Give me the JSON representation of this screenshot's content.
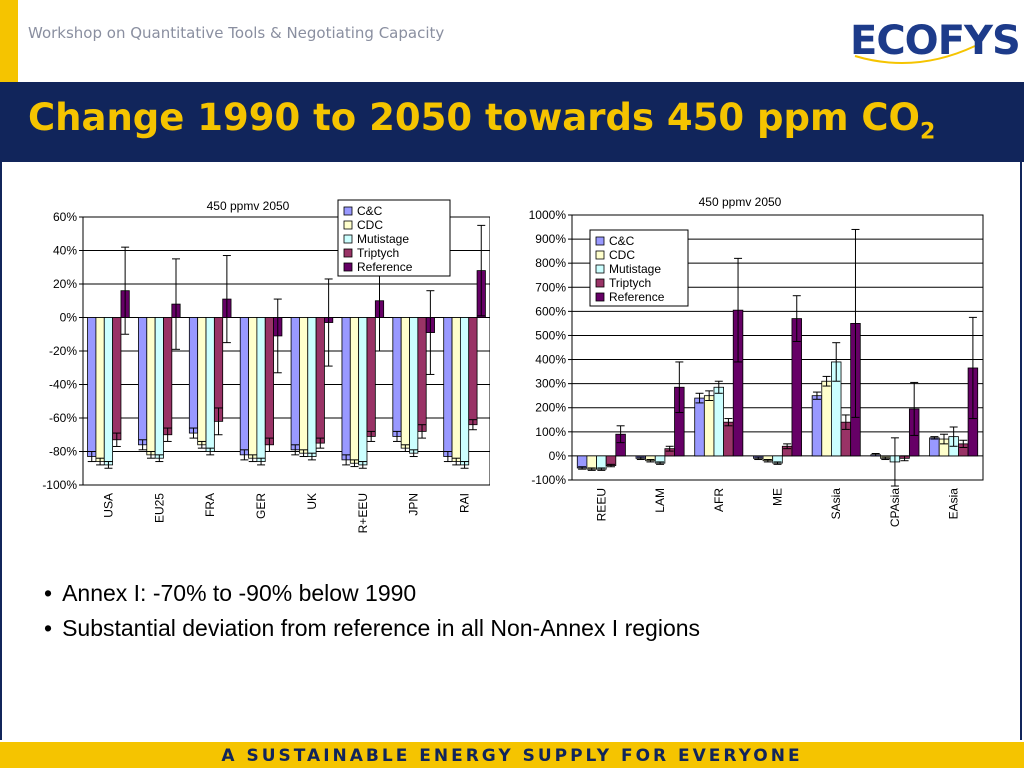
{
  "header": {
    "workshop": "Workshop on Quantitative Tools & Negotiating Capacity",
    "logo_left": "ECO",
    "logo_right": "FYS"
  },
  "slide": {
    "title": "Change 1990 to 2050 towards 450 ppm CO",
    "title_sub": "2",
    "bullets": [
      "Annex I: -70% to -90% below 1990",
      "Substantial deviation from reference in all Non-Annex I regions"
    ]
  },
  "footer": {
    "tagline": "A SUSTAINABLE ENERGY SUPPLY FOR EVERYONE"
  },
  "colors": {
    "navy": "#11255b",
    "yellow": "#f5c400",
    "grey_text": "#8a8fa0"
  },
  "chart_data": [
    {
      "type": "bar",
      "title": "450 ppmv 2050",
      "categories": [
        "USA",
        "EU25",
        "FRA",
        "GER",
        "UK",
        "R+EEU",
        "JPN",
        "RAI"
      ],
      "ylim": [
        -100,
        60
      ],
      "yticks": [
        -100,
        -80,
        -60,
        -40,
        -20,
        0,
        20,
        40,
        60
      ],
      "ytick_labels": [
        "-100%",
        "-80%",
        "-60%",
        "-40%",
        "-20%",
        "0%",
        "20%",
        "40%",
        "60%"
      ],
      "grid": true,
      "legend": "top-right",
      "series": [
        {
          "name": "C&C",
          "color": "#9999ff",
          "values": [
            -83,
            -76,
            -69,
            -82,
            -79,
            -85,
            -71,
            -83
          ],
          "err": [
            3,
            3,
            3,
            3,
            3,
            3,
            3,
            3
          ]
        },
        {
          "name": "CDC",
          "color": "#ffffcc",
          "values": [
            -86,
            -82,
            -76,
            -84,
            -81,
            -87,
            -78,
            -86
          ],
          "err": [
            2,
            2,
            2,
            2,
            2,
            2,
            2,
            2
          ]
        },
        {
          "name": "Mutistage",
          "color": "#ccffff",
          "values": [
            -88,
            -84,
            -80,
            -86,
            -83,
            -88,
            -81,
            -88
          ],
          "err": [
            2,
            2,
            2,
            2,
            2,
            2,
            2,
            2
          ]
        },
        {
          "name": "Triptych",
          "color": "#993366",
          "values": [
            -73,
            -70,
            -62,
            -76,
            -75,
            -71,
            -68,
            -64
          ],
          "err": [
            4,
            4,
            8,
            4,
            3,
            3,
            4,
            3
          ]
        },
        {
          "name": "Reference",
          "color": "#660066",
          "values": [
            16,
            8,
            11,
            -11,
            -3,
            10,
            -9,
            28
          ],
          "err": [
            26,
            27,
            26,
            22,
            26,
            30,
            25,
            27
          ]
        }
      ]
    },
    {
      "type": "bar",
      "title": "450 ppmv 2050",
      "categories": [
        "REEU",
        "LAM",
        "AFR",
        "ME",
        "SAsia",
        "CPAsia",
        "EAsia"
      ],
      "ylim": [
        -100,
        1000
      ],
      "yticks": [
        -100,
        0,
        100,
        200,
        300,
        400,
        500,
        600,
        700,
        800,
        900,
        1000
      ],
      "ytick_labels": [
        "-100%",
        "0%",
        "100%",
        "200%",
        "300%",
        "400%",
        "500%",
        "600%",
        "700%",
        "800%",
        "900%",
        "1000%"
      ],
      "grid": true,
      "legend": "top-left",
      "series": [
        {
          "name": "C&C",
          "color": "#9999ff",
          "values": [
            -50,
            -10,
            240,
            -10,
            250,
            5,
            75
          ],
          "err": [
            5,
            5,
            20,
            5,
            15,
            5,
            5
          ]
        },
        {
          "name": "CDC",
          "color": "#ffffcc",
          "values": [
            -55,
            -20,
            250,
            -20,
            310,
            -10,
            70
          ],
          "err": [
            5,
            5,
            20,
            5,
            20,
            5,
            20
          ]
        },
        {
          "name": "Mutistage",
          "color": "#ccffff",
          "values": [
            -55,
            -30,
            285,
            -30,
            390,
            -25,
            80
          ],
          "err": [
            5,
            5,
            25,
            5,
            80,
            100,
            40
          ]
        },
        {
          "name": "Triptych",
          "color": "#993366",
          "values": [
            -40,
            30,
            140,
            40,
            140,
            -10,
            50
          ],
          "err": [
            5,
            10,
            15,
            10,
            30,
            10,
            15
          ]
        },
        {
          "name": "Reference",
          "color": "#660066",
          "values": [
            90,
            285,
            605,
            570,
            550,
            195,
            365
          ],
          "err": [
            35,
            105,
            215,
            95,
            390,
            110,
            210
          ]
        }
      ]
    }
  ]
}
